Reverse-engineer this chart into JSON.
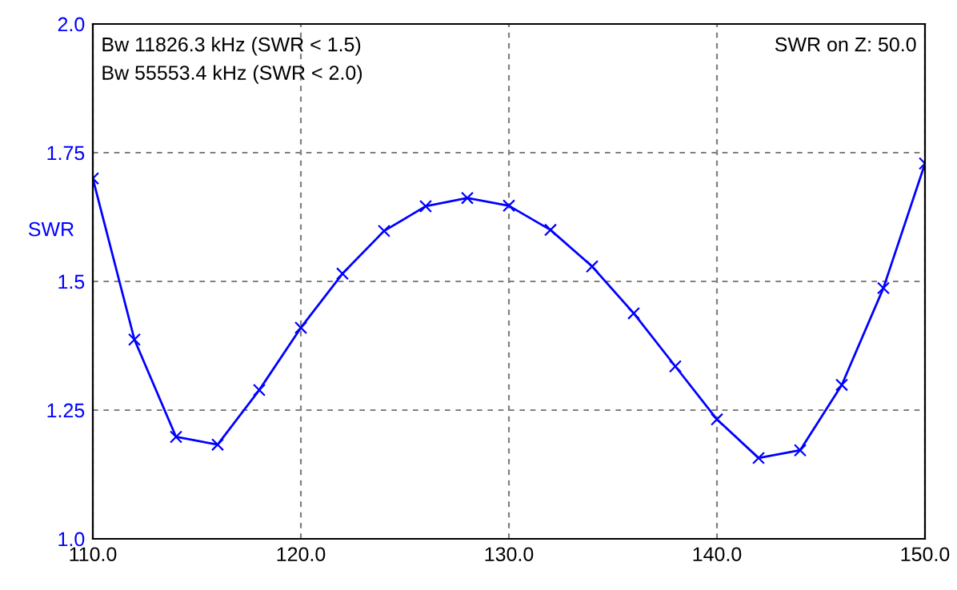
{
  "chart_data": {
    "type": "line",
    "ylabel": "SWR",
    "x": [
      110,
      112,
      114,
      116,
      118,
      120,
      122,
      124,
      126,
      128,
      130,
      132,
      134,
      136,
      138,
      140,
      142,
      144,
      146,
      148,
      150
    ],
    "series": [
      {
        "color": "#0000ff",
        "values": [
          1.7,
          1.387,
          1.198,
          1.183,
          1.289,
          1.41,
          1.515,
          1.598,
          1.646,
          1.662,
          1.647,
          1.6,
          1.529,
          1.438,
          1.335,
          1.232,
          1.157,
          1.172,
          1.299,
          1.487,
          1.729
        ]
      }
    ],
    "xlim": [
      110,
      150
    ],
    "ylim": [
      1.0,
      2.0
    ],
    "xticks": [
      {
        "value": 110,
        "label": "110.0"
      },
      {
        "value": 120,
        "label": "120.0"
      },
      {
        "value": 130,
        "label": "130.0"
      },
      {
        "value": 140,
        "label": "140.0"
      },
      {
        "value": 150,
        "label": "150.0"
      }
    ],
    "yticks": [
      {
        "value": 1.0,
        "label": "1.0"
      },
      1.25,
      1.5,
      1.75,
      {
        "value": 2.0,
        "label": "2.0"
      }
    ],
    "grid": true,
    "marker": "cross",
    "line_style": "solid",
    "annotations": [
      "Bw 11826.3 kHz (SWR < 1.5)",
      "Bw 55553.4 kHz (SWR < 2.0)",
      "SWR on Z: 50.0"
    ]
  }
}
